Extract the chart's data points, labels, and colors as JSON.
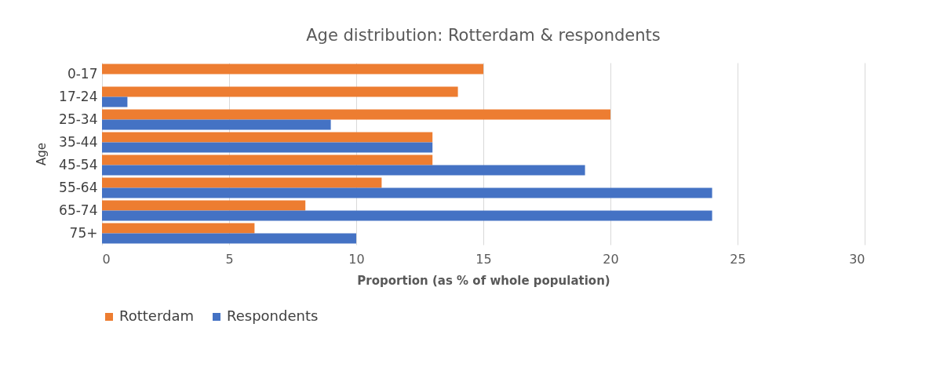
{
  "chart_data": {
    "type": "bar",
    "orientation": "horizontal",
    "title": "Age distribution: Rotterdam & respondents",
    "xlabel": "Proportion (as % of whole population)",
    "ylabel": "Age",
    "categories": [
      "0-17",
      "17-24",
      "25-34",
      "35-44",
      "45-54",
      "55-64",
      "65-74",
      "75+"
    ],
    "series": [
      {
        "name": "Rotterdam",
        "color": "#ed7d31",
        "values": [
          15,
          14,
          20,
          13,
          13,
          11,
          8,
          6
        ]
      },
      {
        "name": "Respondents",
        "color": "#4472c4",
        "values": [
          0,
          1,
          9,
          13,
          19,
          24,
          24,
          10
        ]
      }
    ],
    "xlim": [
      0,
      30
    ],
    "xticks": [
      0,
      5,
      10,
      15,
      20,
      25,
      30
    ],
    "grid": "x",
    "legend": "bottom"
  }
}
